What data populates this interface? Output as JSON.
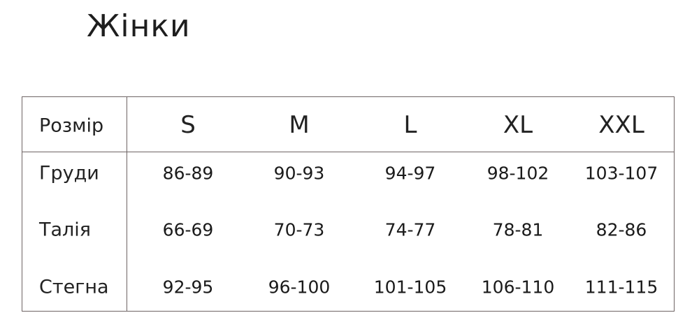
{
  "title": "Жінки",
  "table": {
    "header_label": "Розмір",
    "sizes": [
      "S",
      "M",
      "L",
      "XL",
      "XXL"
    ],
    "rows": [
      {
        "label": "Груди",
        "values": [
          "86-89",
          "90-93",
          "94-97",
          "98-102",
          "103-107"
        ]
      },
      {
        "label": "Талія",
        "values": [
          "66-69",
          "70-73",
          "74-77",
          "78-81",
          "82-86"
        ]
      },
      {
        "label": "Стегна",
        "values": [
          "92-95",
          "96-100",
          "101-105",
          "106-110",
          "111-115"
        ]
      }
    ]
  }
}
